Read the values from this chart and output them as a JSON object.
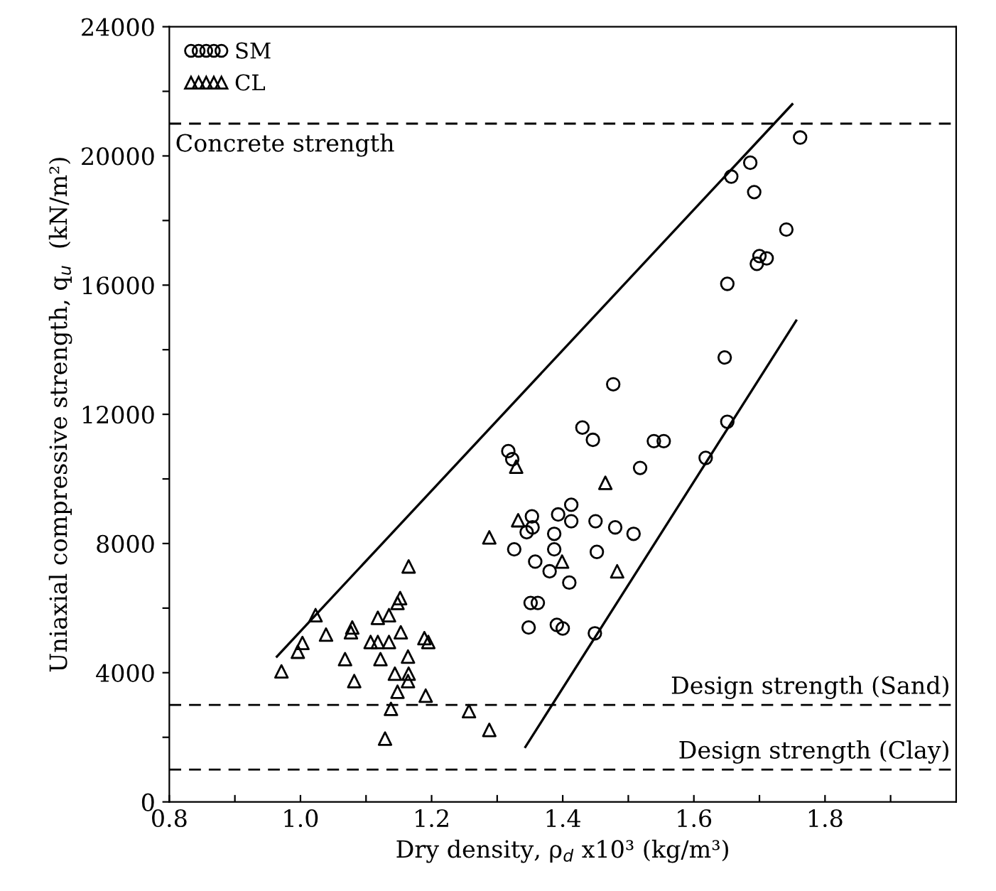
{
  "chart_data": {
    "type": "scatter",
    "xlabel": "Dry density, ρ$_{d}$ x10³ (kg/m³)",
    "ylabel": "Uniaxial compressive strength, q$_{u}$  (kN/m²)",
    "xlim": [
      0.8,
      2.0
    ],
    "xticks": [
      0.8,
      {
        "value": 0.9,
        "label": null
      },
      {
        "value": 1.0,
        "label": "1.0"
      },
      {
        "value": 1.1,
        "label": null
      },
      1.2,
      {
        "value": 1.3,
        "label": null
      },
      1.4,
      {
        "value": 1.5,
        "label": null
      },
      1.6,
      {
        "value": 1.7,
        "label": null
      },
      1.8,
      {
        "value": 1.9,
        "label": null
      }
    ],
    "ylim": [
      0,
      24000
    ],
    "yticks": [
      0,
      {
        "value": 2000,
        "label": null
      },
      4000,
      {
        "value": 6000,
        "label": null
      },
      8000,
      {
        "value": 10000,
        "label": null
      },
      12000,
      {
        "value": 14000,
        "label": null
      },
      16000,
      {
        "value": 18000,
        "label": null
      },
      20000,
      {
        "value": 22000,
        "label": null
      },
      24000
    ],
    "grid": false,
    "legend": "top left",
    "series": [
      {
        "name": "SM",
        "marker": "circle",
        "color": "#000000",
        "x": [
          1.317,
          1.323,
          1.43,
          1.446,
          1.539,
          1.554,
          1.518,
          1.618,
          1.651,
          1.413,
          1.393,
          1.353,
          1.354,
          1.345,
          1.387,
          1.413,
          1.45,
          1.48,
          1.508,
          1.326,
          1.387,
          1.452,
          1.358,
          1.38,
          1.41,
          1.351,
          1.362,
          1.348,
          1.391,
          1.4,
          1.449,
          1.762,
          1.686,
          1.657,
          1.692,
          1.741,
          1.7,
          1.711,
          1.696,
          1.651,
          1.647,
          1.477
        ],
        "values": [
          10860,
          10610,
          11590,
          11210,
          11170,
          11170,
          10340,
          10650,
          11770,
          9200,
          8900,
          8840,
          8500,
          8350,
          8300,
          8690,
          8690,
          8500,
          8300,
          7820,
          7820,
          7740,
          7440,
          7140,
          6790,
          6160,
          6160,
          5400,
          5480,
          5370,
          5220,
          20570,
          19790,
          19360,
          18880,
          17720,
          16900,
          16830,
          16660,
          16040,
          13760,
          12930
        ]
      },
      {
        "name": "CL",
        "marker": "triangle",
        "color": "#000000",
        "x": [
          0.971,
          0.996,
          1.003,
          1.023,
          1.039,
          1.077,
          1.079,
          1.068,
          1.082,
          1.107,
          1.118,
          1.135,
          1.118,
          1.135,
          1.148,
          1.152,
          1.165,
          1.153,
          1.122,
          1.164,
          1.144,
          1.165,
          1.164,
          1.148,
          1.138,
          1.189,
          1.195,
          1.191,
          1.129,
          1.257,
          1.288,
          1.288,
          1.329,
          1.332,
          1.465,
          1.399,
          1.483
        ],
        "values": [
          4040,
          4650,
          4920,
          5780,
          5180,
          5250,
          5400,
          4420,
          3740,
          4950,
          4950,
          4950,
          5700,
          5780,
          6160,
          6310,
          7290,
          5250,
          4420,
          4500,
          3970,
          3970,
          3740,
          3410,
          2880,
          5070,
          4950,
          3290,
          1960,
          2810,
          2230,
          8190,
          10380,
          8720,
          9880,
          7440,
          7140
        ]
      },
      {
        "type": "line",
        "color": "#000000",
        "line_style": "solid",
        "x": [
          0.964,
          1.75
        ],
        "values": [
          4500,
          21600
        ]
      },
      {
        "type": "line",
        "color": "#000000",
        "line_style": "solid",
        "x": [
          1.343,
          1.756
        ],
        "values": [
          1700,
          14900
        ]
      }
    ],
    "ref_lines": [
      {
        "axis": "y",
        "value": 21000,
        "label": "Concrete strength",
        "color": "#000000",
        "line_style": "dashed"
      },
      {
        "axis": "y",
        "value": 3000,
        "label": "Design strength (Sand)",
        "color": "#000000",
        "line_style": "dashed"
      },
      {
        "axis": "y",
        "value": 1000,
        "label": "Design strength (Clay)",
        "color": "#000000",
        "line_style": "dashed"
      }
    ]
  }
}
